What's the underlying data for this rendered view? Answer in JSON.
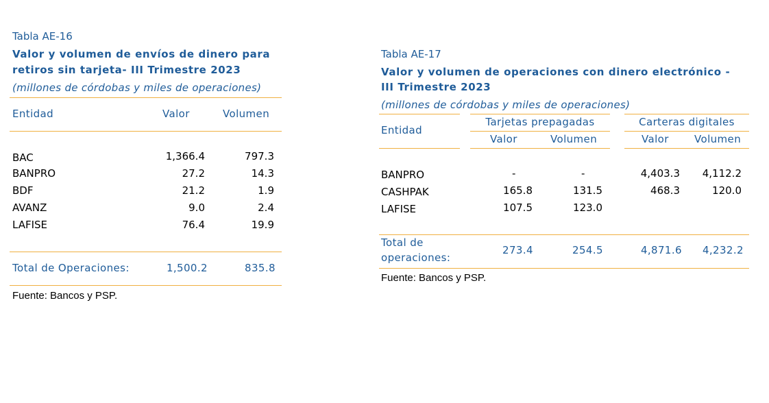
{
  "t16": {
    "label": "Tabla AE-16",
    "title_line1": "Valor y volumen de envíos de dinero para",
    "title_line2": "retiros sin tarjeta- III Trimestre 2023",
    "units": "(millones de córdobas y miles de operaciones)",
    "col_entity": "Entidad",
    "col_valor": "Valor",
    "col_volumen": "Volumen",
    "rows": [
      {
        "entity": "BAC",
        "valor": "1,366.4",
        "volumen": "797.3"
      },
      {
        "entity": "BANPRO",
        "valor": "27.2",
        "volumen": "14.3"
      },
      {
        "entity": "BDF",
        "valor": "21.2",
        "volumen": "1.9"
      },
      {
        "entity": "AVANZ",
        "valor": "9.0",
        "volumen": "2.4"
      },
      {
        "entity": "LAFISE",
        "valor": "76.4",
        "volumen": "19.9"
      }
    ],
    "total_label": "Total de Operaciones:",
    "total_valor": "1,500.2",
    "total_volumen": "835.8",
    "source": "Fuente: Bancos y PSP."
  },
  "t17": {
    "label": "Tabla AE-17",
    "title_line1": "Valor y volumen de operaciones con dinero electrónico -",
    "title_line2": "III Trimestre 2023",
    "units": "(millones de córdobas y miles de operaciones)",
    "col_entity": "Entidad",
    "group1": "Tarjetas prepagadas",
    "group2": "Carteras digitales",
    "col_valor": "Valor",
    "col_volumen": "Volumen",
    "rows": [
      {
        "entity": "BANPRO",
        "tp_valor": "-",
        "tp_volumen": "-",
        "cd_valor": "4,403.3",
        "cd_volumen": "4,112.2"
      },
      {
        "entity": "CASHPAK",
        "tp_valor": "165.8",
        "tp_volumen": "131.5",
        "cd_valor": "468.3",
        "cd_volumen": "120.0"
      },
      {
        "entity": "LAFISE",
        "tp_valor": "107.5",
        "tp_volumen": "123.0",
        "cd_valor": "",
        "cd_volumen": ""
      }
    ],
    "total_label_line1": "Total de",
    "total_label_line2": "operaciones:",
    "total_tp_valor": "273.4",
    "total_tp_volumen": "254.5",
    "total_cd_valor": "4,871.6",
    "total_cd_volumen": "4,232.2",
    "source": "Fuente: Bancos y PSP."
  }
}
